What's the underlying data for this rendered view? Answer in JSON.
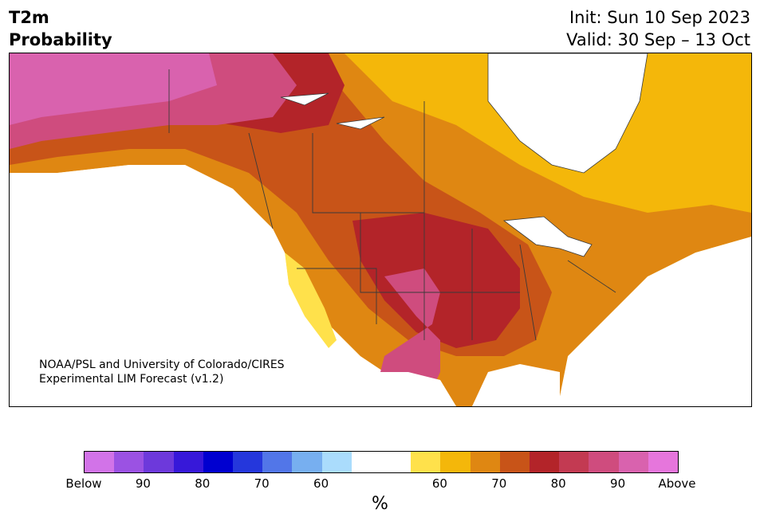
{
  "header": {
    "variable": "T2m",
    "product": "Probability",
    "init": "Init: Sun 10 Sep 2023",
    "valid": "Valid: 30 Sep – 13 Oct"
  },
  "map": {
    "region": "North America",
    "credit_line1": "NOAA/PSL and University of Colorado/CIRES",
    "credit_line2": "Experimental LIM Forecast (v1.2)"
  },
  "colorbar": {
    "colors": [
      "#d273e8",
      "#9b52e3",
      "#6d39db",
      "#3718d9",
      "#0000d0",
      "#2537dc",
      "#5276e8",
      "#77aff0",
      "#aadcfc",
      "#ffffff",
      "#ffffff",
      "#ffe14b",
      "#f4b70a",
      "#df8712",
      "#c85418",
      "#b32429",
      "#c33a52",
      "#cf4c7e",
      "#d962ae",
      "#e676dc"
    ],
    "tick_labels": [
      "Below",
      "90",
      "80",
      "70",
      "60",
      "60",
      "70",
      "80",
      "90",
      "Above"
    ],
    "unit": "%"
  },
  "colors": {
    "water": "#ffffff",
    "border": "#3a3a3a"
  }
}
